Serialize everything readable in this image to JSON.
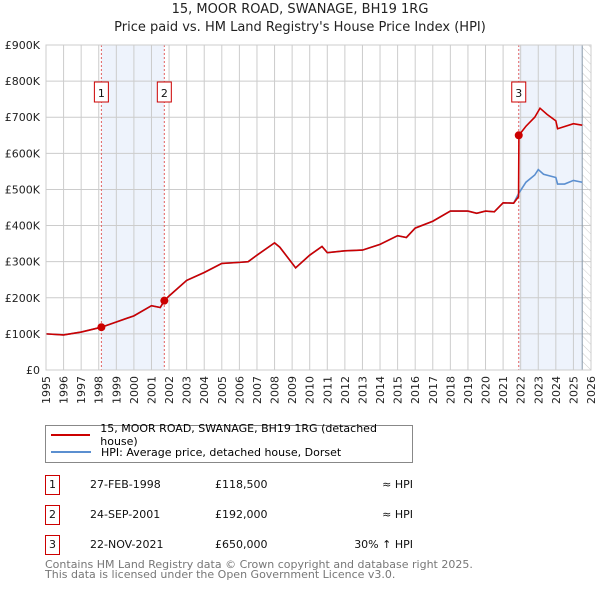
{
  "chart_data": {
    "type": "line",
    "title": "15, MOOR ROAD, SWANAGE, BH19 1RG",
    "subtitle": "Price paid vs. HM Land Registry's House Price Index (HPI)",
    "xlim": [
      1995,
      2026
    ],
    "ylim": [
      0,
      900000
    ],
    "x_ticks": [
      "1995",
      "1996",
      "1997",
      "1998",
      "1999",
      "2000",
      "2001",
      "2002",
      "2003",
      "2004",
      "2005",
      "2006",
      "2007",
      "2008",
      "2009",
      "2010",
      "2011",
      "2012",
      "2013",
      "2014",
      "2015",
      "2016",
      "2017",
      "2018",
      "2019",
      "2020",
      "2021",
      "2022",
      "2023",
      "2024",
      "2025",
      "2026"
    ],
    "y_ticks": [
      {
        "v": 0,
        "label": "£0"
      },
      {
        "v": 100000,
        "label": "£100K"
      },
      {
        "v": 200000,
        "label": "£200K"
      },
      {
        "v": 300000,
        "label": "£300K"
      },
      {
        "v": 400000,
        "label": "£400K"
      },
      {
        "v": 500000,
        "label": "£500K"
      },
      {
        "v": 600000,
        "label": "£600K"
      },
      {
        "v": 700000,
        "label": "£700K"
      },
      {
        "v": 800000,
        "label": "£800K"
      },
      {
        "v": 900000,
        "label": "£900K"
      }
    ],
    "grid": true,
    "series": [
      {
        "name": "HPI: Average price, detached house, Dorset",
        "color": "#5b8fd0",
        "points": [
          [
            1995,
            100000
          ],
          [
            1996,
            97000
          ],
          [
            1997,
            105000
          ],
          [
            1998.15,
            118500
          ],
          [
            1999,
            133000
          ],
          [
            2000,
            150000
          ],
          [
            2001,
            178000
          ],
          [
            2001.5,
            173000
          ],
          [
            2001.73,
            192000
          ],
          [
            2002,
            205000
          ],
          [
            2003,
            248000
          ],
          [
            2004,
            270000
          ],
          [
            2005,
            295000
          ],
          [
            2006,
            298000
          ],
          [
            2006.5,
            300000
          ],
          [
            2007,
            318000
          ],
          [
            2008,
            352000
          ],
          [
            2008.3,
            340000
          ],
          [
            2009.2,
            283000
          ],
          [
            2010,
            318000
          ],
          [
            2010.7,
            342000
          ],
          [
            2011,
            325000
          ],
          [
            2012,
            330000
          ],
          [
            2013,
            332000
          ],
          [
            2014,
            348000
          ],
          [
            2015,
            372000
          ],
          [
            2015.5,
            367000
          ],
          [
            2016,
            393000
          ],
          [
            2017,
            412000
          ],
          [
            2018,
            440000
          ],
          [
            2019,
            440000
          ],
          [
            2019.5,
            434000
          ],
          [
            2020,
            440000
          ],
          [
            2020.5,
            438000
          ],
          [
            2021,
            463000
          ],
          [
            2021.6,
            462000
          ],
          [
            2021.9,
            490000
          ],
          [
            2022.3,
            520000
          ],
          [
            2022.8,
            540000
          ],
          [
            2023,
            555000
          ],
          [
            2023.3,
            542000
          ],
          [
            2024,
            533000
          ],
          [
            2024.1,
            515000
          ],
          [
            2024.5,
            515000
          ],
          [
            2025,
            525000
          ],
          [
            2025.5,
            520000
          ]
        ]
      },
      {
        "name": "15, MOOR ROAD, SWANAGE, BH19 1RG (detached house)",
        "color": "#cc0000",
        "points": [
          [
            1995,
            100000
          ],
          [
            1996,
            97000
          ],
          [
            1997,
            105000
          ],
          [
            1998.15,
            118500
          ],
          [
            1999,
            133000
          ],
          [
            2000,
            150000
          ],
          [
            2001,
            178000
          ],
          [
            2001.5,
            173000
          ],
          [
            2001.73,
            192000
          ],
          [
            2002,
            205000
          ],
          [
            2003,
            248000
          ],
          [
            2004,
            270000
          ],
          [
            2005,
            295000
          ],
          [
            2006,
            298000
          ],
          [
            2006.5,
            300000
          ],
          [
            2007,
            318000
          ],
          [
            2008,
            352000
          ],
          [
            2008.3,
            340000
          ],
          [
            2009.2,
            283000
          ],
          [
            2010,
            318000
          ],
          [
            2010.7,
            342000
          ],
          [
            2011,
            325000
          ],
          [
            2012,
            330000
          ],
          [
            2013,
            332000
          ],
          [
            2014,
            348000
          ],
          [
            2015,
            372000
          ],
          [
            2015.5,
            367000
          ],
          [
            2016,
            393000
          ],
          [
            2017,
            412000
          ],
          [
            2018,
            440000
          ],
          [
            2019,
            440000
          ],
          [
            2019.5,
            434000
          ],
          [
            2020,
            440000
          ],
          [
            2020.5,
            438000
          ],
          [
            2021,
            463000
          ],
          [
            2021.6,
            462000
          ],
          [
            2021.88,
            480000
          ],
          [
            2021.9,
            650000
          ],
          [
            2022.3,
            675000
          ],
          [
            2022.8,
            700000
          ],
          [
            2023.1,
            725000
          ],
          [
            2023.5,
            708000
          ],
          [
            2024,
            690000
          ],
          [
            2024.1,
            668000
          ],
          [
            2025,
            682000
          ],
          [
            2025.5,
            678000
          ]
        ]
      }
    ],
    "sales": [
      {
        "n": "1",
        "x": 1998.15,
        "date": "27-FEB-1998",
        "price": 118500,
        "price_label": "£118,500",
        "hpi": "≈ HPI"
      },
      {
        "n": "2",
        "x": 2001.73,
        "date": "24-SEP-2001",
        "price": 192000,
        "price_label": "£192,000",
        "hpi": "≈ HPI"
      },
      {
        "n": "3",
        "x": 2021.89,
        "date": "22-NOV-2021",
        "price": 650000,
        "price_label": "£650,000",
        "hpi": "30% ↑ HPI"
      }
    ],
    "shaded": [
      [
        1998.15,
        2001.73
      ],
      [
        2021.89,
        2025.5
      ]
    ],
    "hatch_from": 2025.5,
    "legend_placement": "below"
  },
  "footer": {
    "line1": "Contains HM Land Registry data © Crown copyright and database right 2025.",
    "line2": "This data is licensed under the Open Government Licence v3.0."
  }
}
